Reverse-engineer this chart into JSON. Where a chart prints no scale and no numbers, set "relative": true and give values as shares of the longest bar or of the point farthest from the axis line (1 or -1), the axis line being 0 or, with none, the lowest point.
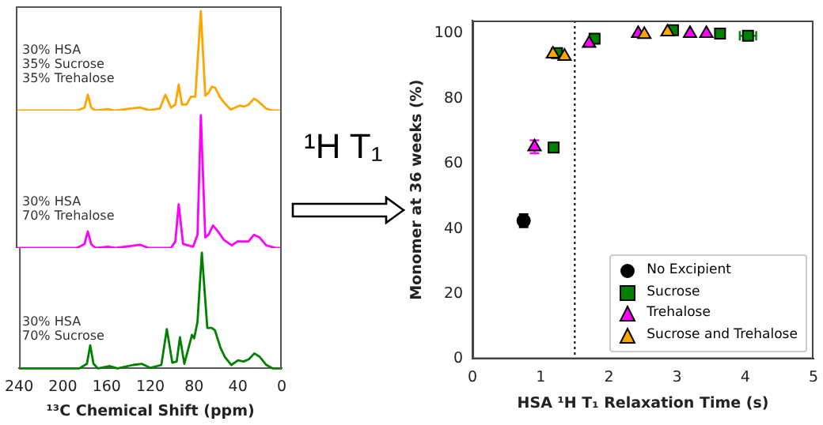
{
  "chart_data": [
    {
      "type": "line",
      "relative": true,
      "xlim": [
        240,
        0
      ],
      "xticks": [
        240,
        200,
        160,
        120,
        80,
        40,
        0
      ],
      "tick_labels": false,
      "annotations": [
        "30% HSA\n35% Sucrose\n35% Trehalose"
      ],
      "x": [
        240,
        220,
        200,
        185,
        178,
        175,
        172,
        168,
        157,
        150,
        136,
        128,
        120,
        110,
        105,
        100,
        96,
        93,
        90,
        86,
        82,
        78,
        73,
        69,
        66,
        63,
        60,
        56,
        52,
        46,
        42,
        38,
        34,
        30,
        25,
        22,
        18,
        14,
        8,
        0
      ],
      "series": [
        {
          "color": "#ffa500",
          "values": [
            0,
            0,
            0,
            0,
            0.03,
            0.16,
            0.03,
            0,
            0.015,
            0,
            0.02,
            0.03,
            0.005,
            0.02,
            0.16,
            0.03,
            0.06,
            0.26,
            0.06,
            0.06,
            0.14,
            0.14,
            1.0,
            0.15,
            0.18,
            0.24,
            0.23,
            0.14,
            0.08,
            0.01,
            0.03,
            0.05,
            0.04,
            0.06,
            0.12,
            0.1,
            0.06,
            0.02,
            0,
            0
          ]
        }
      ]
    },
    {
      "type": "line",
      "relative": true,
      "xlim": [
        240,
        0
      ],
      "xticks": [
        240,
        200,
        160,
        120,
        80,
        40,
        0
      ],
      "tick_labels": false,
      "annotations": [
        "30% HSA\n70% Trehalose"
      ],
      "x": [
        240,
        220,
        200,
        185,
        178,
        175,
        172,
        168,
        157,
        150,
        136,
        128,
        120,
        100,
        96,
        93,
        89,
        80,
        76,
        73,
        69,
        66,
        62,
        58,
        52,
        45,
        40,
        30,
        25,
        20,
        14,
        5,
        0
      ],
      "series": [
        {
          "color": "#ff00ff",
          "values": [
            0,
            0,
            0,
            0,
            0.03,
            0.125,
            0.03,
            0,
            0.01,
            0,
            0.015,
            0.025,
            0,
            0,
            0.05,
            0.33,
            0.03,
            0.01,
            0.1,
            1.0,
            0.08,
            0.1,
            0.17,
            0.13,
            0.06,
            0.02,
            0.05,
            0.05,
            0.1,
            0.08,
            0.02,
            0,
            0
          ]
        }
      ]
    },
    {
      "type": "line",
      "relative": true,
      "xlim": [
        240,
        0
      ],
      "xticks": [
        240,
        200,
        160,
        120,
        80,
        40,
        0
      ],
      "tick_labels": "x",
      "xlabel": "¹³C Chemical Shift (ppm)",
      "annotations": [
        "30% HSA\n70% Sucrose"
      ],
      "x": [
        240,
        220,
        200,
        185,
        178,
        175,
        172,
        168,
        157,
        150,
        136,
        128,
        120,
        110,
        105,
        100,
        96,
        93,
        89,
        82,
        80,
        77,
        73,
        68,
        64,
        61,
        56,
        52,
        46,
        40,
        35,
        30,
        25,
        20,
        14,
        8,
        0
      ],
      "series": [
        {
          "color": "#008000",
          "values": [
            0,
            0,
            0,
            0,
            0.04,
            0.2,
            0.04,
            0,
            0.02,
            0,
            0.03,
            0.04,
            0.005,
            0.03,
            0.34,
            0.05,
            0.06,
            0.27,
            0.04,
            0.29,
            0.26,
            0.4,
            1.0,
            0.35,
            0.35,
            0.33,
            0.18,
            0.1,
            0.03,
            0.07,
            0.06,
            0.08,
            0.13,
            0.1,
            0.03,
            0,
            0
          ]
        }
      ]
    },
    {
      "type": "other",
      "annotations": [
        "¹H T₁"
      ]
    },
    {
      "type": "scatter",
      "xlabel": "HSA ¹H T₁ Relaxation Time (s)",
      "ylabel": "Monomer at 36 weeks (%)",
      "xlim": [
        0,
        5
      ],
      "ylim": [
        0,
        104
      ],
      "xticks": [
        0,
        1,
        2,
        3,
        4,
        5
      ],
      "yticks": [
        0,
        20,
        40,
        60,
        80,
        100
      ],
      "legend": "bottom right",
      "ref_lines": [
        {
          "axis": "x",
          "value": 1.5,
          "color": "#000000",
          "line_style": "dotted"
        }
      ],
      "series": [
        {
          "name": "No Excipient",
          "color": "#000000",
          "x": [
            0.75
          ],
          "values": [
            42.5
          ],
          "errors": [
            2
          ],
          "xerrors": [
            0.03
          ]
        },
        {
          "name": "Sucrose",
          "color": "#008000",
          "marker": "square",
          "x": [
            1.19,
            1.24,
            1.79,
            2.94,
            3.63,
            4.04
          ],
          "values": [
            65,
            94,
            98.4,
            101,
            100,
            99.3
          ],
          "errors": [
            null,
            null,
            null,
            null,
            null,
            null
          ],
          "xerrors": [
            null,
            null,
            null,
            null,
            null,
            0.12
          ]
        },
        {
          "name": "Trehalose",
          "color": "#ff00ff",
          "marker": "triangle",
          "x": [
            0.91,
            1.26,
            1.71,
            2.43,
            3.19,
            3.43
          ],
          "values": [
            65.2,
            null,
            97,
            100,
            100,
            100
          ],
          "errors": [
            2,
            null,
            null,
            null,
            null,
            null
          ]
        },
        {
          "name": "Sucrose and Trehalose",
          "color": "#ffa500",
          "marker": "triangle",
          "x": [
            1.18,
            1.35,
            2.52,
            2.86
          ],
          "values": [
            93.7,
            93,
            99.7,
            100.5
          ]
        }
      ]
    }
  ]
}
